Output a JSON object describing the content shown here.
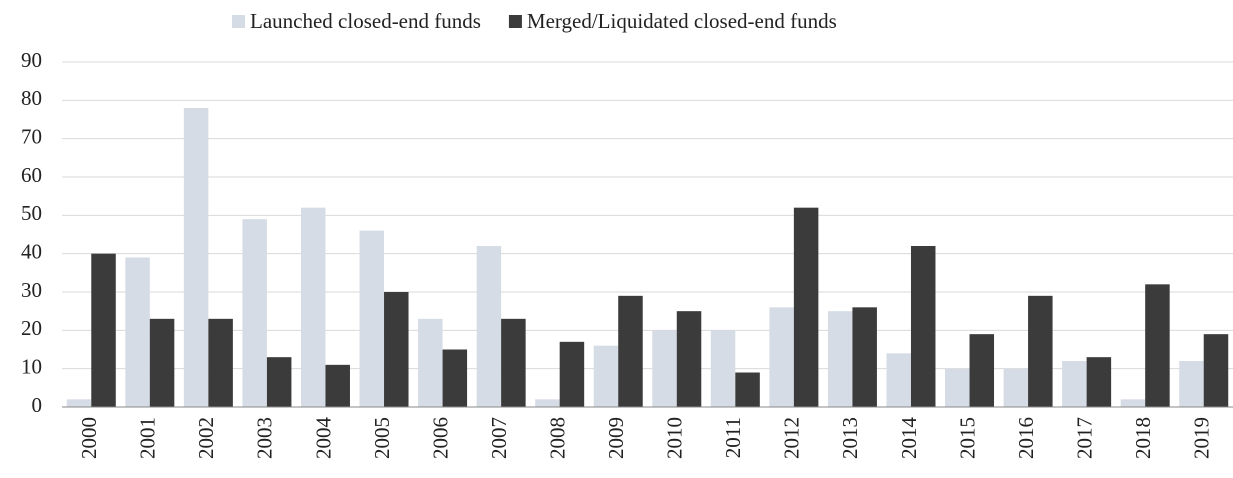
{
  "chart_data": {
    "type": "bar",
    "categories": [
      "2000",
      "2001",
      "2002",
      "2003",
      "2004",
      "2005",
      "2006",
      "2007",
      "2008",
      "2009",
      "2010",
      "2011",
      "2012",
      "2013",
      "2014",
      "2015",
      "2016",
      "2017",
      "2018",
      "2019"
    ],
    "series": [
      {
        "name": "Launched closed-end funds",
        "color": "#d6dce5",
        "values": [
          2,
          39,
          78,
          49,
          52,
          46,
          23,
          42,
          2,
          16,
          20,
          20,
          26,
          25,
          14,
          10,
          10,
          12,
          2,
          12
        ]
      },
      {
        "name": "Merged/Liquidated closed-end funds",
        "color": "#3b3b3b",
        "values": [
          40,
          23,
          23,
          13,
          11,
          30,
          15,
          23,
          17,
          29,
          25,
          9,
          52,
          26,
          42,
          19,
          29,
          13,
          32,
          19
        ]
      }
    ],
    "ylim": [
      0,
      90
    ],
    "yticks": [
      0,
      10,
      20,
      30,
      40,
      50,
      60,
      70,
      80,
      90
    ],
    "grid": true,
    "legend": "top"
  }
}
